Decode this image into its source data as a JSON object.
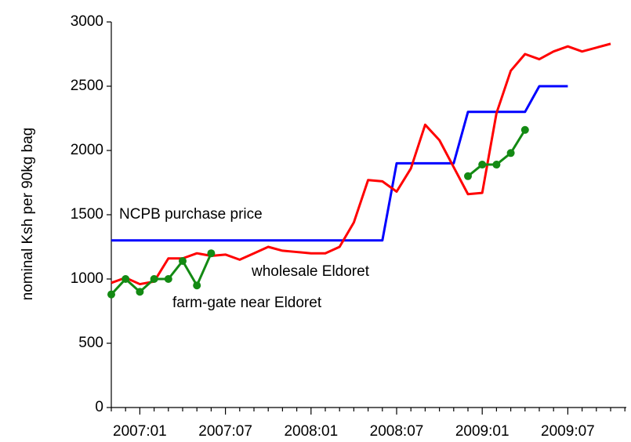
{
  "chart_data": {
    "type": "line",
    "y_label": "nominal Ksh per 90kg bag",
    "annotations": [
      "NCPB purchase price",
      "wholesale Eldoret",
      "farm-gate near Eldoret"
    ],
    "categories": [
      null,
      null,
      "2007:01",
      null,
      null,
      null,
      null,
      null,
      "2007:07",
      null,
      null,
      null,
      null,
      null,
      "2008:01",
      null,
      null,
      null,
      null,
      null,
      "2008:07",
      null,
      null,
      null,
      null,
      null,
      "2009:01",
      null,
      null,
      null,
      null,
      null,
      "2009:07",
      null,
      null,
      null,
      null
    ],
    "ylim": [
      0,
      3000
    ],
    "yticks": [
      0,
      500,
      1000,
      1500,
      2000,
      2500,
      3000
    ],
    "series": [
      {
        "name": "NCPB purchase price",
        "color": "#0000ff",
        "markers": false,
        "values": [
          1300,
          1300,
          1300,
          1300,
          1300,
          1300,
          1300,
          1300,
          1300,
          1300,
          1300,
          1300,
          1300,
          1300,
          1300,
          1300,
          1300,
          1300,
          1300,
          1300,
          1900,
          1900,
          1900,
          1900,
          1900,
          2300,
          2300,
          2300,
          2300,
          2300,
          2500,
          2500,
          2500,
          null,
          null,
          null,
          null
        ]
      },
      {
        "name": "wholesale Eldoret",
        "color": "#ff0000",
        "markers": false,
        "values": [
          970,
          1010,
          960,
          980,
          1160,
          1160,
          1200,
          1180,
          1190,
          1150,
          1200,
          1250,
          1220,
          1210,
          1200,
          1200,
          1250,
          1440,
          1770,
          1760,
          1680,
          1860,
          2200,
          2080,
          1870,
          1660,
          1670,
          2290,
          2620,
          2750,
          2710,
          2770,
          2810,
          2770,
          2800,
          2830,
          null
        ]
      },
      {
        "name": "farm-gate near Eldoret",
        "color": "#138a13",
        "markers": true,
        "values": [
          880,
          1000,
          900,
          1000,
          1000,
          1140,
          950,
          1200,
          null,
          null,
          null,
          null,
          null,
          null,
          null,
          null,
          null,
          null,
          null,
          null,
          null,
          null,
          null,
          null,
          null,
          1800,
          1890,
          1890,
          1980,
          2160,
          null,
          null,
          null,
          null,
          null,
          null,
          null
        ]
      }
    ]
  }
}
